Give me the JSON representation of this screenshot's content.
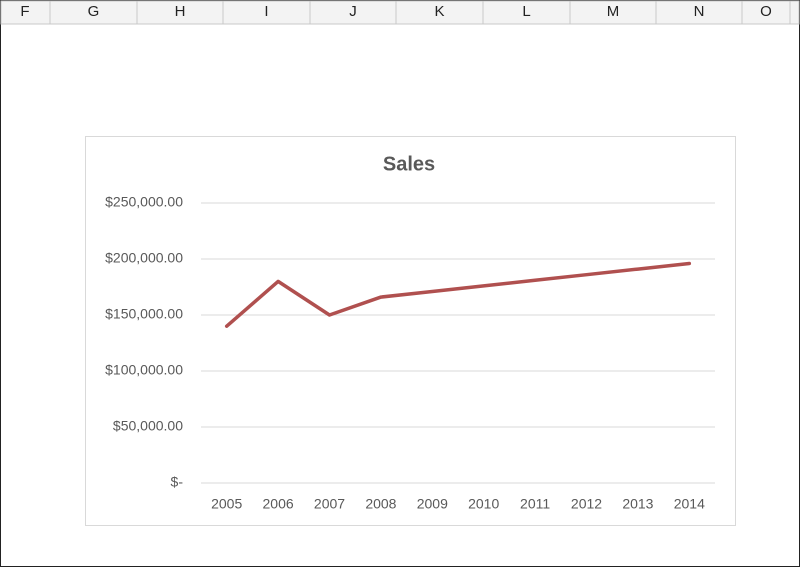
{
  "columns": [
    "F",
    "G",
    "H",
    "I",
    "J",
    "K",
    "L",
    "M",
    "N",
    "O"
  ],
  "chart_data": {
    "type": "line",
    "title": "Sales",
    "categories": [
      "2005",
      "2006",
      "2007",
      "2008",
      "2009",
      "2010",
      "2011",
      "2012",
      "2013",
      "2014"
    ],
    "series": [
      {
        "name": "Sales",
        "color": "#b0504f",
        "values": [
          140000,
          180000,
          150000,
          166000,
          171000,
          176000,
          181000,
          186000,
          191000,
          196000
        ]
      }
    ],
    "ylim": [
      0,
      250000
    ],
    "yticks": [
      {
        "value": 0,
        "label": "$-"
      },
      {
        "value": 50000,
        "label": "$50,000.00"
      },
      {
        "value": 100000,
        "label": "$100,000.00"
      },
      {
        "value": 150000,
        "label": "$150,000.00"
      },
      {
        "value": 200000,
        "label": "$200,000.00"
      },
      {
        "value": 250000,
        "label": "$250,000.00"
      }
    ],
    "grid": true,
    "legend": false
  }
}
